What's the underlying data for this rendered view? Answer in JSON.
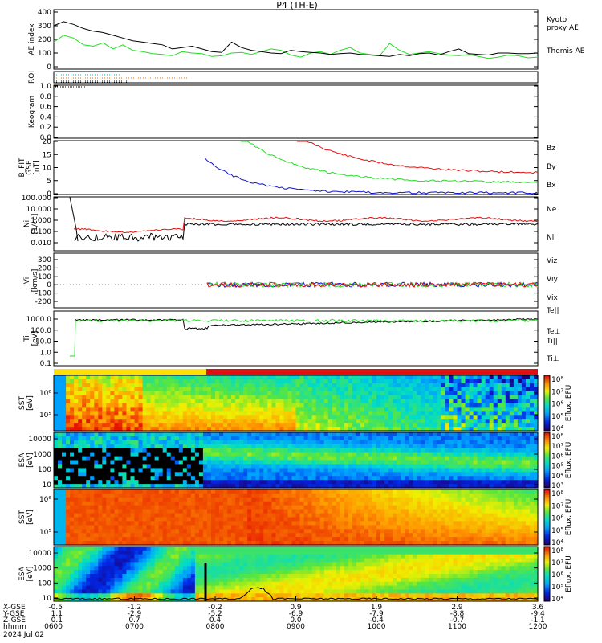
{
  "title": "P4 (TH-E)",
  "date": "2024 Jul 02",
  "colors": {
    "black": "#000000",
    "green": "#22dd22",
    "red": "#e01010",
    "blue": "#1010d0",
    "orange": "#e07000",
    "cyan": "#00b0b0"
  },
  "chart_data": [
    {
      "panel": "ae",
      "type": "line",
      "ylabel": "AE index",
      "ylim": [
        0,
        400
      ],
      "yticks": [
        "400",
        "300",
        "200",
        "100",
        "0"
      ],
      "series": [
        {
          "name": "Kyoto proxy AE",
          "color": "green",
          "values": [
            180,
            230,
            210,
            160,
            150,
            175,
            130,
            160,
            120,
            110,
            95,
            90,
            80,
            110,
            100,
            95,
            75,
            80,
            100,
            105,
            90,
            110,
            130,
            120,
            85,
            70,
            100,
            110,
            90,
            120,
            140,
            100,
            90,
            80,
            170,
            120,
            90,
            100,
            110,
            95,
            85,
            80,
            90,
            75,
            60,
            70,
            85,
            80,
            65,
            70
          ]
        },
        {
          "name": "Themis AE",
          "color": "black",
          "values": [
            300,
            330,
            310,
            280,
            260,
            250,
            230,
            210,
            190,
            180,
            170,
            160,
            130,
            140,
            150,
            130,
            110,
            105,
            180,
            140,
            120,
            110,
            100,
            95,
            120,
            110,
            105,
            100,
            90,
            95,
            100,
            90,
            85,
            80,
            75,
            90,
            80,
            95,
            100,
            85,
            110,
            130,
            95,
            90,
            85,
            100,
            100,
            95,
            95,
            100
          ]
        }
      ]
    },
    {
      "panel": "roi",
      "type": "line",
      "ylabel": "ROI"
    },
    {
      "panel": "keogram",
      "type": "line",
      "ylabel": "Keogram",
      "yticks": [
        "1.0",
        "0.8",
        "0.6",
        "0.4",
        "0.2",
        "0.0"
      ]
    },
    {
      "panel": "bfield",
      "type": "line",
      "ylabel": "B_FIT GSE [nT]",
      "yticks": [
        "20",
        "15",
        "10",
        "5",
        "0"
      ],
      "series": [
        {
          "name": "Bz",
          "color": "red"
        },
        {
          "name": "By",
          "color": "green"
        },
        {
          "name": "Bx",
          "color": "blue"
        }
      ]
    },
    {
      "panel": "density",
      "type": "line",
      "ylabel": "Ni [1/cc]",
      "yticks": [
        "100.000",
        "10.000",
        "1.000",
        "0.100",
        "0.010"
      ],
      "series": [
        {
          "name": "Ne",
          "color": "red"
        },
        {
          "name": "Ni",
          "color": "black"
        }
      ]
    },
    {
      "panel": "velocity",
      "type": "line",
      "ylabel": "Vi [km/s]",
      "yticks": [
        "300",
        "200",
        "100",
        "0",
        "-100",
        "-200"
      ],
      "series": [
        {
          "name": "Viz",
          "color": "red"
        },
        {
          "name": "Viy",
          "color": "green"
        },
        {
          "name": "Vix",
          "color": "blue"
        }
      ]
    },
    {
      "panel": "temperature",
      "type": "line",
      "ylabel": "Ti [eV]",
      "yticks": [
        "1000.0",
        "100.0",
        "10.0",
        "1.0",
        "0.1"
      ],
      "series": [
        {
          "name": "Te||",
          "color": "black"
        },
        {
          "name": "Te⊥",
          "color": "red"
        },
        {
          "name": "Ti||",
          "color": "green"
        },
        {
          "name": "Ti⊥",
          "color": "blue"
        }
      ]
    },
    {
      "panel": "sst_ion",
      "type": "heatmap",
      "ylabel": "SST [eV]",
      "yticks": [
        "10⁶",
        "10⁵"
      ],
      "colorbar_label": "Eflux, EFU",
      "colorbar_ticks": [
        "10⁸",
        "10⁷",
        "10⁶",
        "10⁵",
        "10⁴"
      ]
    },
    {
      "panel": "esa_ion",
      "type": "heatmap",
      "ylabel": "ESA [eV]",
      "yticks": [
        "10000",
        "1000",
        "100",
        "10"
      ],
      "colorbar_label": "Eflux, EFU",
      "colorbar_ticks": [
        "10⁸",
        "10⁷",
        "10⁶",
        "10⁵",
        "10⁴",
        "10³"
      ]
    },
    {
      "panel": "sst_elec",
      "type": "heatmap",
      "ylabel": "SST [eV]",
      "yticks": [
        "10⁶",
        "10⁵"
      ],
      "colorbar_label": "Eflux, EFU",
      "colorbar_ticks": [
        "10⁸",
        "10⁷",
        "10⁶",
        "10⁵",
        "10⁴"
      ]
    },
    {
      "panel": "esa_elec",
      "type": "heatmap",
      "ylabel": "ESA [eV]",
      "yticks": [
        "10000",
        "1000",
        "100",
        "10"
      ],
      "colorbar_label": "Eflux, EFU",
      "colorbar_ticks": [
        "10⁸",
        "10⁷",
        "10⁶",
        "10⁵",
        "10⁴"
      ]
    }
  ],
  "x_axis": {
    "row_labels": [
      "X-GSE",
      "Y-GSE",
      "Z-GSE",
      "hhmm",
      "2024 Jul 02"
    ],
    "ticks": [
      {
        "x": "-0.5",
        "y": "1.1",
        "z": "0.1",
        "t": "0600"
      },
      {
        "x": "-1.2",
        "y": "-2.9",
        "z": "0.7",
        "t": "0700"
      },
      {
        "x": "-0.2",
        "y": "-5.2",
        "z": "0.4",
        "t": "0800"
      },
      {
        "x": "0.9",
        "y": "-6.9",
        "z": "0.0",
        "t": "0900"
      },
      {
        "x": "1.9",
        "y": "-7.9",
        "z": "-0.4",
        "t": "1000"
      },
      {
        "x": "2.9",
        "y": "-8.8",
        "z": "-0.7",
        "t": "1100"
      },
      {
        "x": "3.6",
        "y": "-9.4",
        "z": "-1.1",
        "t": "1200"
      }
    ]
  }
}
